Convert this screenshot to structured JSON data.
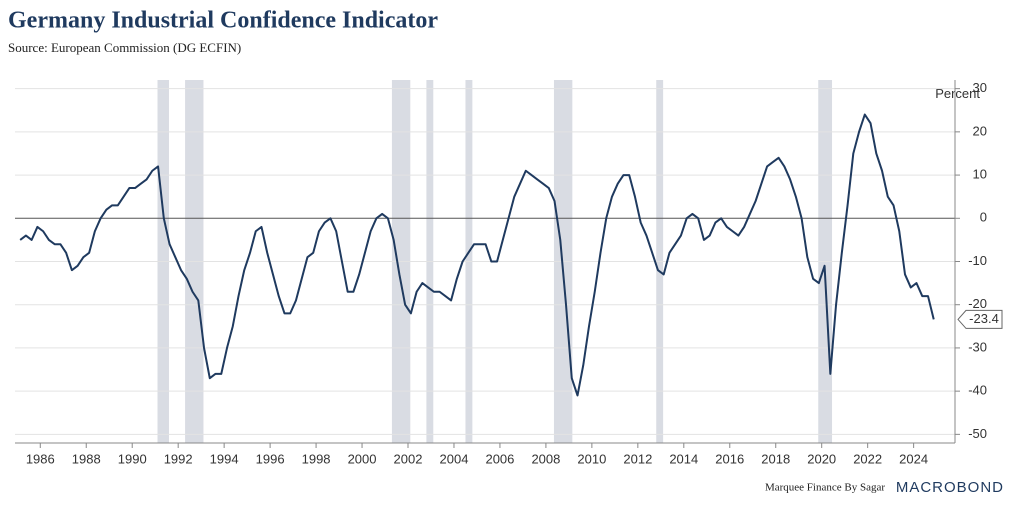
{
  "chart_data": {
    "type": "line",
    "title": "Germany Industrial Confidence Indicator",
    "subtitle": "Source: European Commission (DG ECFIN)",
    "y_label": "Percent",
    "footer": "Marquee Finance By Sagar",
    "logo": "MACROBOND",
    "xlim": [
      1984.9,
      2025.8
    ],
    "ylim": [
      -52,
      32
    ],
    "xticks": [
      1986,
      1988,
      1990,
      1992,
      1994,
      1996,
      1998,
      2000,
      2002,
      2004,
      2006,
      2008,
      2010,
      2012,
      2014,
      2016,
      2018,
      2020,
      2022,
      2024
    ],
    "yticks": [
      -50,
      -40,
      -30,
      -20,
      -10,
      0,
      10,
      20,
      30
    ],
    "grid": true,
    "shade_color": "#d9dce3",
    "shaded_periods": [
      [
        1991.1,
        1991.6
      ],
      [
        1992.3,
        1993.1
      ],
      [
        2001.3,
        2002.1
      ],
      [
        2002.8,
        2003.1
      ],
      [
        2004.5,
        2004.8
      ],
      [
        2008.35,
        2009.15
      ],
      [
        2012.8,
        2013.1
      ],
      [
        2019.85,
        2020.45
      ]
    ],
    "series": [
      {
        "color": "#1f3a5f",
        "x": [
          1985.125,
          1985.375,
          1985.625,
          1985.875,
          1986.125,
          1986.375,
          1986.625,
          1986.875,
          1987.125,
          1987.375,
          1987.625,
          1987.875,
          1988.125,
          1988.375,
          1988.625,
          1988.875,
          1989.125,
          1989.375,
          1989.625,
          1989.875,
          1990.125,
          1990.375,
          1990.625,
          1990.875,
          1991.125,
          1991.375,
          1991.625,
          1991.875,
          1992.125,
          1992.375,
          1992.625,
          1992.875,
          1993.125,
          1993.375,
          1993.625,
          1993.875,
          1994.125,
          1994.375,
          1994.625,
          1994.875,
          1995.125,
          1995.375,
          1995.625,
          1995.875,
          1996.125,
          1996.375,
          1996.625,
          1996.875,
          1997.125,
          1997.375,
          1997.625,
          1997.875,
          1998.125,
          1998.375,
          1998.625,
          1998.875,
          1999.125,
          1999.375,
          1999.625,
          1999.875,
          2000.125,
          2000.375,
          2000.625,
          2000.875,
          2001.125,
          2001.375,
          2001.625,
          2001.875,
          2002.125,
          2002.375,
          2002.625,
          2002.875,
          2003.125,
          2003.375,
          2003.625,
          2003.875,
          2004.125,
          2004.375,
          2004.625,
          2004.875,
          2005.125,
          2005.375,
          2005.625,
          2005.875,
          2006.125,
          2006.375,
          2006.625,
          2006.875,
          2007.125,
          2007.375,
          2007.625,
          2007.875,
          2008.125,
          2008.375,
          2008.625,
          2008.875,
          2009.125,
          2009.375,
          2009.625,
          2009.875,
          2010.125,
          2010.375,
          2010.625,
          2010.875,
          2011.125,
          2011.375,
          2011.625,
          2011.875,
          2012.125,
          2012.375,
          2012.625,
          2012.875,
          2013.125,
          2013.375,
          2013.625,
          2013.875,
          2014.125,
          2014.375,
          2014.625,
          2014.875,
          2015.125,
          2015.375,
          2015.625,
          2015.875,
          2016.125,
          2016.375,
          2016.625,
          2016.875,
          2017.125,
          2017.375,
          2017.625,
          2017.875,
          2018.125,
          2018.375,
          2018.625,
          2018.875,
          2019.125,
          2019.375,
          2019.625,
          2019.875,
          2020.125,
          2020.375,
          2020.625,
          2020.875,
          2021.125,
          2021.375,
          2021.625,
          2021.875,
          2022.125,
          2022.375,
          2022.625,
          2022.875,
          2023.125,
          2023.375,
          2023.625,
          2023.875,
          2024.125,
          2024.375,
          2024.625,
          2024.875
        ],
        "values": [
          -5,
          -4,
          -5,
          -2,
          -3,
          -5,
          -6,
          -6,
          -8,
          -12,
          -11,
          -9,
          -8,
          -3,
          0,
          2,
          3,
          3,
          5,
          7,
          7,
          8,
          9,
          11,
          12,
          0,
          -6,
          -9,
          -12,
          -14,
          -17,
          -19,
          -30,
          -37,
          -36,
          -36,
          -30,
          -25,
          -18,
          -12,
          -8,
          -3,
          -2,
          -8,
          -13,
          -18,
          -22,
          -22,
          -19,
          -14,
          -9,
          -8,
          -3,
          -1,
          0,
          -3,
          -10,
          -17,
          -17,
          -13,
          -8,
          -3,
          0,
          1,
          0,
          -5,
          -13,
          -20,
          -22,
          -17,
          -15,
          -16,
          -17,
          -17,
          -18,
          -19,
          -14,
          -10,
          -8,
          -6,
          -6,
          -6,
          -10,
          -10,
          -5,
          0,
          5,
          8,
          11,
          10,
          9,
          8,
          7,
          4,
          -5,
          -20,
          -37,
          -41,
          -34,
          -25,
          -17,
          -8,
          0,
          5,
          8,
          10,
          10,
          5,
          -1,
          -4,
          -8,
          -12,
          -13,
          -8,
          -6,
          -4,
          0,
          1,
          0,
          -5,
          -4,
          -1,
          0,
          -2,
          -3,
          -4,
          -2,
          1,
          4,
          8,
          12,
          13,
          14,
          12,
          9,
          5,
          0,
          -9,
          -14,
          -15,
          -11,
          -36,
          -20,
          -8,
          3,
          15,
          20,
          24,
          22,
          15,
          11,
          5,
          3,
          -3,
          -13,
          -16,
          -15,
          -18,
          -18,
          -23.4
        ]
      }
    ]
  }
}
